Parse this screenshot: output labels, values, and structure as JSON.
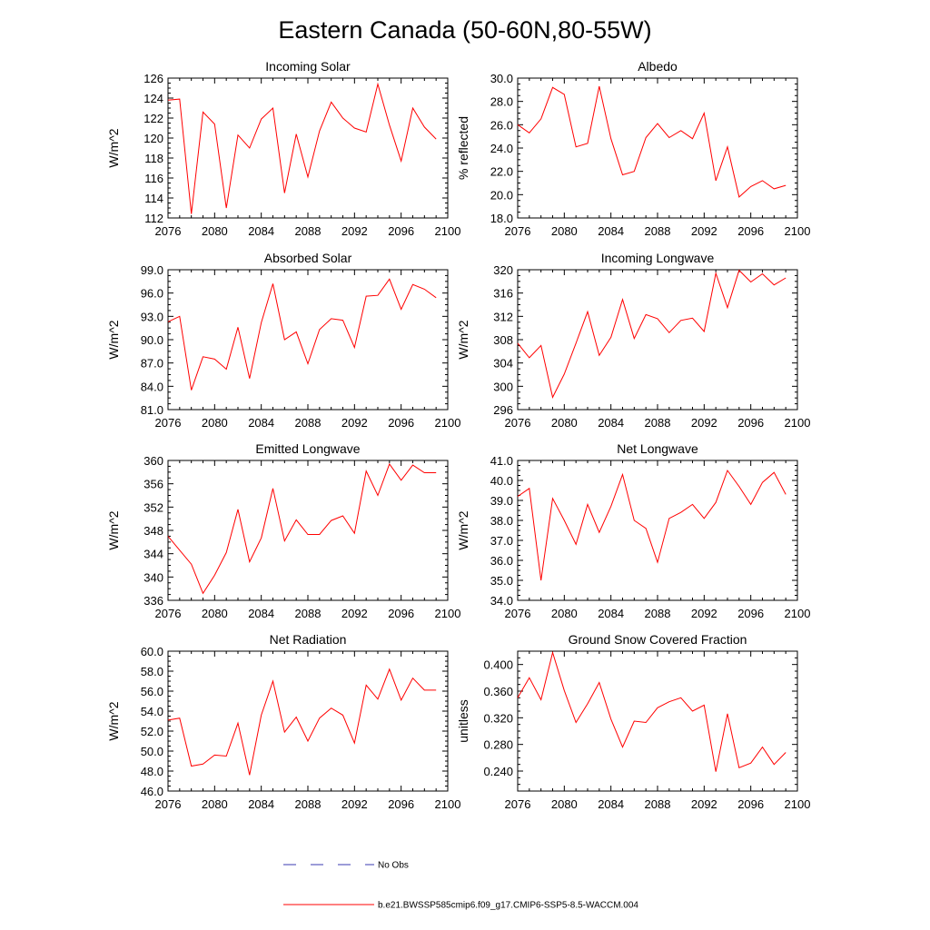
{
  "title": "Eastern Canada (50-60N,80-55W)",
  "colors": {
    "series": "#ff0000",
    "obs": "#3a3ab0",
    "axis": "#000000"
  },
  "legend": [
    {
      "label": "No Obs",
      "style": "dashed",
      "color": "#3a3ab0"
    },
    {
      "label": "b.e21.BWSSP585cmip6.f09_g17.CMIP6-SSP5-8.5-WACCM.004",
      "style": "solid",
      "color": "#ff0000"
    }
  ],
  "chart_data": [
    {
      "type": "line",
      "title": "Incoming Solar",
      "ylabel": "W/m^2",
      "xlim": [
        2076,
        2100
      ],
      "xticks": [
        "2076",
        "2080",
        "2084",
        "2088",
        "2092",
        "2096",
        "2100"
      ],
      "ylim": [
        112,
        126
      ],
      "yticks": [
        "112",
        "114",
        "116",
        "118",
        "120",
        "122",
        "124",
        "126"
      ],
      "ytick_values": [
        112,
        114,
        116,
        118,
        120,
        122,
        124,
        126
      ],
      "x": [
        2076,
        2077,
        2078,
        2079,
        2080,
        2081,
        2082,
        2083,
        2084,
        2085,
        2086,
        2087,
        2088,
        2089,
        2090,
        2091,
        2092,
        2093,
        2094,
        2095,
        2096,
        2097,
        2098,
        2099
      ],
      "values": [
        123.8,
        123.9,
        112.4,
        122.6,
        121.4,
        113.0,
        120.3,
        119.0,
        121.9,
        123.0,
        114.5,
        120.4,
        116.1,
        120.7,
        123.6,
        122.0,
        121.0,
        120.6,
        125.4,
        121.3,
        117.7,
        123.0,
        121.1,
        119.9
      ]
    },
    {
      "type": "line",
      "title": "Albedo",
      "ylabel": "% reflected",
      "xlim": [
        2076,
        2100
      ],
      "xticks": [
        "2076",
        "2080",
        "2084",
        "2088",
        "2092",
        "2096",
        "2100"
      ],
      "ylim": [
        18,
        30
      ],
      "yticks": [
        "18.0",
        "20.0",
        "22.0",
        "24.0",
        "26.0",
        "28.0",
        "30.0"
      ],
      "ytick_values": [
        18,
        20,
        22,
        24,
        26,
        28,
        30
      ],
      "x": [
        2076,
        2077,
        2078,
        2079,
        2080,
        2081,
        2082,
        2083,
        2084,
        2085,
        2086,
        2087,
        2088,
        2089,
        2090,
        2091,
        2092,
        2093,
        2094,
        2095,
        2096,
        2097,
        2098,
        2099
      ],
      "values": [
        26.0,
        25.3,
        26.5,
        29.2,
        28.6,
        24.1,
        24.4,
        29.3,
        24.8,
        21.7,
        22.0,
        24.9,
        26.1,
        24.9,
        25.5,
        24.8,
        27.0,
        21.2,
        24.1,
        19.8,
        20.7,
        21.2,
        20.5,
        20.8
      ]
    },
    {
      "type": "line",
      "title": "Absorbed Solar",
      "ylabel": "W/m^2",
      "xlim": [
        2076,
        2100
      ],
      "xticks": [
        "2076",
        "2080",
        "2084",
        "2088",
        "2092",
        "2096",
        "2100"
      ],
      "ylim": [
        81,
        99
      ],
      "yticks": [
        "81.0",
        "84.0",
        "87.0",
        "90.0",
        "93.0",
        "96.0",
        "99.0"
      ],
      "ytick_values": [
        81,
        84,
        87,
        90,
        93,
        96,
        99
      ],
      "x": [
        2076,
        2077,
        2078,
        2079,
        2080,
        2081,
        2082,
        2083,
        2084,
        2085,
        2086,
        2087,
        2088,
        2089,
        2090,
        2091,
        2092,
        2093,
        2094,
        2095,
        2096,
        2097,
        2098,
        2099
      ],
      "values": [
        92.3,
        93.0,
        83.5,
        87.8,
        87.5,
        86.2,
        91.6,
        85.0,
        92.2,
        97.2,
        90.0,
        91.0,
        86.9,
        91.3,
        92.7,
        92.5,
        89.0,
        95.6,
        95.7,
        97.8,
        93.9,
        97.1,
        96.5,
        95.4
      ]
    },
    {
      "type": "line",
      "title": "Incoming Longwave",
      "ylabel": "W/m^2",
      "xlim": [
        2076,
        2100
      ],
      "xticks": [
        "2076",
        "2080",
        "2084",
        "2088",
        "2092",
        "2096",
        "2100"
      ],
      "ylim": [
        296,
        320
      ],
      "yticks": [
        "296",
        "300",
        "304",
        "308",
        "312",
        "316",
        "320"
      ],
      "ytick_values": [
        296,
        300,
        304,
        308,
        312,
        316,
        320
      ],
      "x": [
        2076,
        2077,
        2078,
        2079,
        2080,
        2081,
        2082,
        2083,
        2084,
        2085,
        2086,
        2087,
        2088,
        2089,
        2090,
        2091,
        2092,
        2093,
        2094,
        2095,
        2096,
        2097,
        2098,
        2099
      ],
      "values": [
        307.4,
        304.9,
        307.0,
        298.1,
        302.1,
        307.4,
        312.8,
        305.3,
        308.4,
        314.9,
        308.2,
        312.3,
        311.6,
        309.2,
        311.3,
        311.7,
        309.4,
        319.4,
        313.5,
        319.9,
        317.9,
        319.3,
        317.4,
        318.6
      ]
    },
    {
      "type": "line",
      "title": "Emitted Longwave",
      "ylabel": "W/m^2",
      "xlim": [
        2076,
        2100
      ],
      "xticks": [
        "2076",
        "2080",
        "2084",
        "2088",
        "2092",
        "2096",
        "2100"
      ],
      "ylim": [
        336,
        360
      ],
      "yticks": [
        "336",
        "340",
        "344",
        "348",
        "352",
        "356",
        "360"
      ],
      "ytick_values": [
        336,
        340,
        344,
        348,
        352,
        356,
        360
      ],
      "x": [
        2076,
        2077,
        2078,
        2079,
        2080,
        2081,
        2082,
        2083,
        2084,
        2085,
        2086,
        2087,
        2088,
        2089,
        2090,
        2091,
        2092,
        2093,
        2094,
        2095,
        2096,
        2097,
        2098,
        2099
      ],
      "values": [
        347.0,
        344.6,
        342.2,
        337.2,
        340.3,
        344.2,
        351.6,
        342.6,
        346.7,
        355.2,
        346.2,
        349.8,
        347.3,
        347.3,
        349.7,
        350.5,
        347.5,
        358.2,
        354.0,
        359.4,
        356.6,
        359.2,
        357.9,
        357.9
      ]
    },
    {
      "type": "line",
      "title": "Net Longwave",
      "ylabel": "W/m^2",
      "xlim": [
        2076,
        2100
      ],
      "xticks": [
        "2076",
        "2080",
        "2084",
        "2088",
        "2092",
        "2096",
        "2100"
      ],
      "ylim": [
        34,
        41
      ],
      "yticks": [
        "34.0",
        "35.0",
        "36.0",
        "37.0",
        "38.0",
        "39.0",
        "40.0",
        "41.0"
      ],
      "ytick_values": [
        34,
        35,
        36,
        37,
        38,
        39,
        40,
        41
      ],
      "x": [
        2076,
        2077,
        2078,
        2079,
        2080,
        2081,
        2082,
        2083,
        2084,
        2085,
        2086,
        2087,
        2088,
        2089,
        2090,
        2091,
        2092,
        2093,
        2094,
        2095,
        2096,
        2097,
        2098,
        2099
      ],
      "values": [
        39.2,
        39.6,
        35.0,
        39.1,
        38.0,
        36.8,
        38.8,
        37.4,
        38.7,
        40.3,
        38.0,
        37.6,
        35.9,
        38.1,
        38.4,
        38.8,
        38.1,
        38.9,
        40.5,
        39.7,
        38.8,
        39.9,
        40.4,
        39.3
      ]
    },
    {
      "type": "line",
      "title": "Net Radiation",
      "ylabel": "W/m^2",
      "xlim": [
        2076,
        2100
      ],
      "xticks": [
        "2076",
        "2080",
        "2084",
        "2088",
        "2092",
        "2096",
        "2100"
      ],
      "ylim": [
        46,
        60
      ],
      "yticks": [
        "46.0",
        "48.0",
        "50.0",
        "52.0",
        "54.0",
        "56.0",
        "58.0",
        "60.0"
      ],
      "ytick_values": [
        46,
        48,
        50,
        52,
        54,
        56,
        58,
        60
      ],
      "x": [
        2076,
        2077,
        2078,
        2079,
        2080,
        2081,
        2082,
        2083,
        2084,
        2085,
        2086,
        2087,
        2088,
        2089,
        2090,
        2091,
        2092,
        2093,
        2094,
        2095,
        2096,
        2097,
        2098,
        2099
      ],
      "values": [
        53.1,
        53.3,
        48.5,
        48.7,
        49.6,
        49.5,
        52.8,
        47.6,
        53.6,
        57.0,
        51.9,
        53.4,
        51.0,
        53.3,
        54.3,
        53.6,
        50.8,
        56.6,
        55.2,
        58.2,
        55.1,
        57.3,
        56.1,
        56.1
      ]
    },
    {
      "type": "line",
      "title": "Ground Snow Covered Fraction",
      "ylabel": "unitless",
      "xlim": [
        2076,
        2100
      ],
      "xticks": [
        "2076",
        "2080",
        "2084",
        "2088",
        "2092",
        "2096",
        "2100"
      ],
      "ylim": [
        0.21,
        0.42
      ],
      "yticks": [
        "0.240",
        "0.280",
        "0.320",
        "0.360",
        "0.400"
      ],
      "ytick_values": [
        0.24,
        0.28,
        0.32,
        0.36,
        0.4
      ],
      "x": [
        2076,
        2077,
        2078,
        2079,
        2080,
        2081,
        2082,
        2083,
        2084,
        2085,
        2086,
        2087,
        2088,
        2089,
        2090,
        2091,
        2092,
        2093,
        2094,
        2095,
        2096,
        2097,
        2098,
        2099
      ],
      "values": [
        0.35,
        0.38,
        0.347,
        0.418,
        0.361,
        0.313,
        0.341,
        0.373,
        0.318,
        0.276,
        0.315,
        0.313,
        0.335,
        0.344,
        0.35,
        0.33,
        0.339,
        0.239,
        0.326,
        0.245,
        0.252,
        0.276,
        0.25,
        0.268
      ]
    }
  ]
}
